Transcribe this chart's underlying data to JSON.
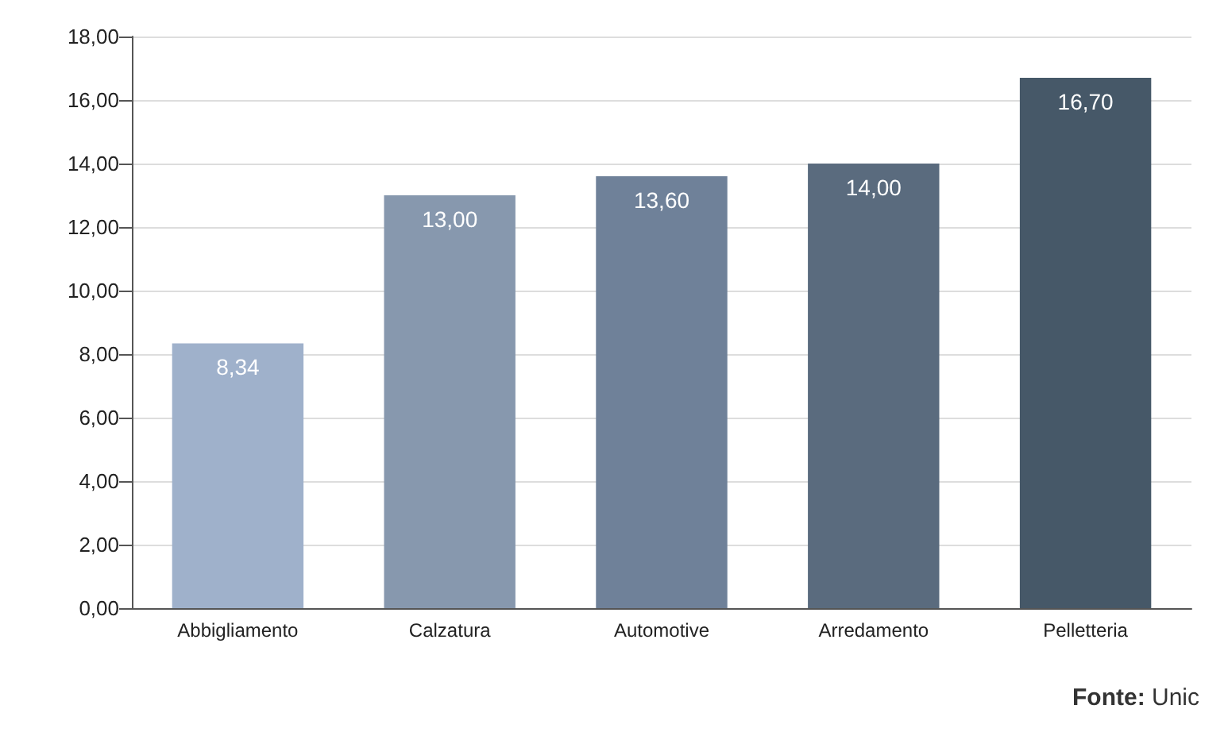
{
  "chart_data": {
    "type": "bar",
    "categories": [
      "Abbigliamento",
      "Calzatura",
      "Automotive",
      "Arredamento",
      "Pelletteria"
    ],
    "values": [
      8.34,
      13.0,
      13.6,
      14.0,
      16.7
    ],
    "colors": [
      "#9fb1cb",
      "#8798ae",
      "#6f8199",
      "#5a6b7e",
      "#465868"
    ],
    "value_labels": [
      "8,34",
      "13,00",
      "13,60",
      "14,00",
      "16,70"
    ],
    "ylim": [
      0,
      18
    ],
    "yticks": [
      {
        "value": 0,
        "label": "0,00"
      },
      {
        "value": 2,
        "label": "2,00"
      },
      {
        "value": 4,
        "label": "4,00"
      },
      {
        "value": 6,
        "label": "6,00"
      },
      {
        "value": 8,
        "label": "8,00"
      },
      {
        "value": 10,
        "label": "10,00"
      },
      {
        "value": 12,
        "label": "12,00"
      },
      {
        "value": 14,
        "label": "14,00"
      },
      {
        "value": 16,
        "label": "16,00"
      },
      {
        "value": 18,
        "label": "18,00"
      }
    ],
    "grid": "y",
    "annotations": [
      "Fonte: Unic"
    ]
  }
}
